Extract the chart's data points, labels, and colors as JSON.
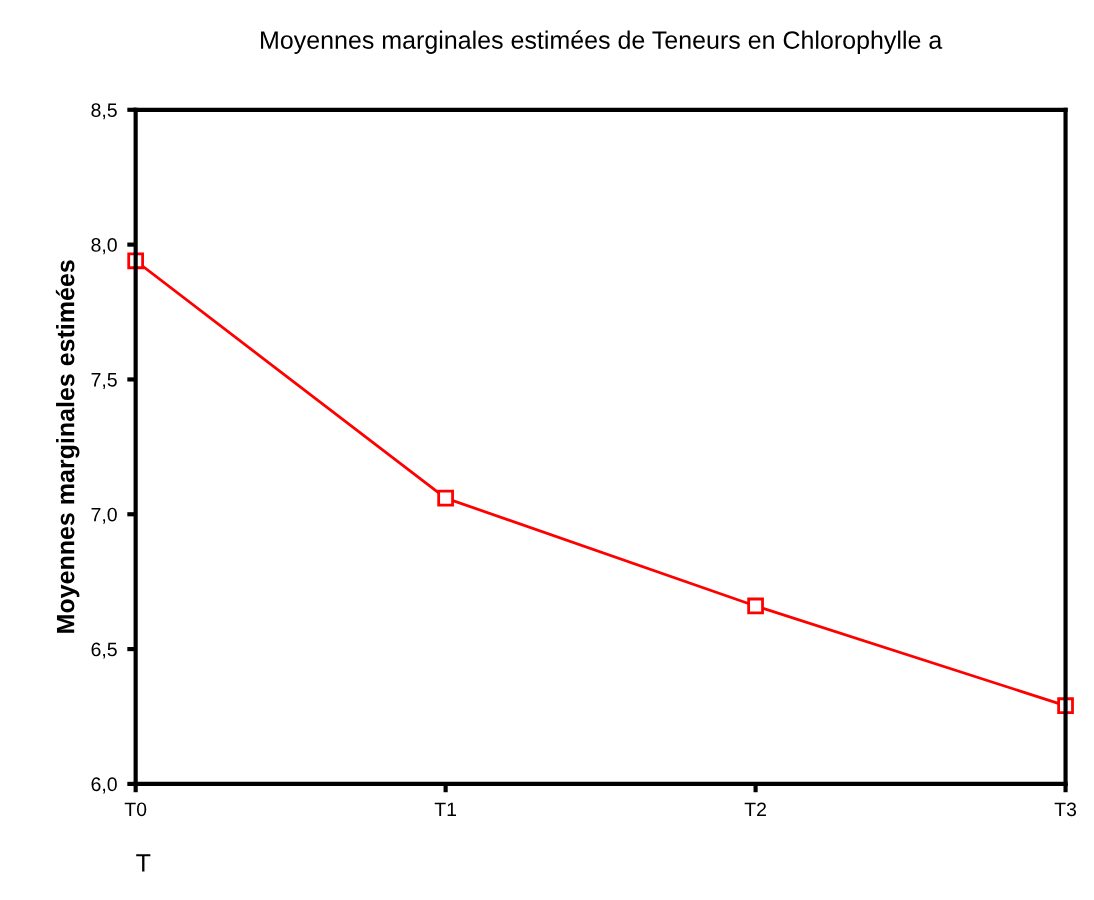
{
  "chart_data": {
    "type": "line",
    "title": "Moyennes marginales estimées de Teneurs en Chlorophylle a",
    "xlabel": "T",
    "ylabel": "Moyennes marginales estimées",
    "categories": [
      "T0",
      "T1",
      "T2",
      "T3"
    ],
    "series": [
      {
        "color": "#ff0000",
        "values": [
          7.94,
          7.06,
          6.66,
          6.29
        ]
      }
    ],
    "ylim": [
      6.0,
      8.5
    ],
    "yticks": [
      {
        "value": 6.0,
        "label": "6,0"
      },
      {
        "value": 6.5,
        "label": "6,5"
      },
      {
        "value": 7.0,
        "label": "7,0"
      },
      {
        "value": 7.5,
        "label": "7,5"
      },
      {
        "value": 8.0,
        "label": "8,0"
      },
      {
        "value": 8.5,
        "label": "8,5"
      }
    ],
    "marker": "square",
    "line_style": "solid",
    "grid": false
  }
}
